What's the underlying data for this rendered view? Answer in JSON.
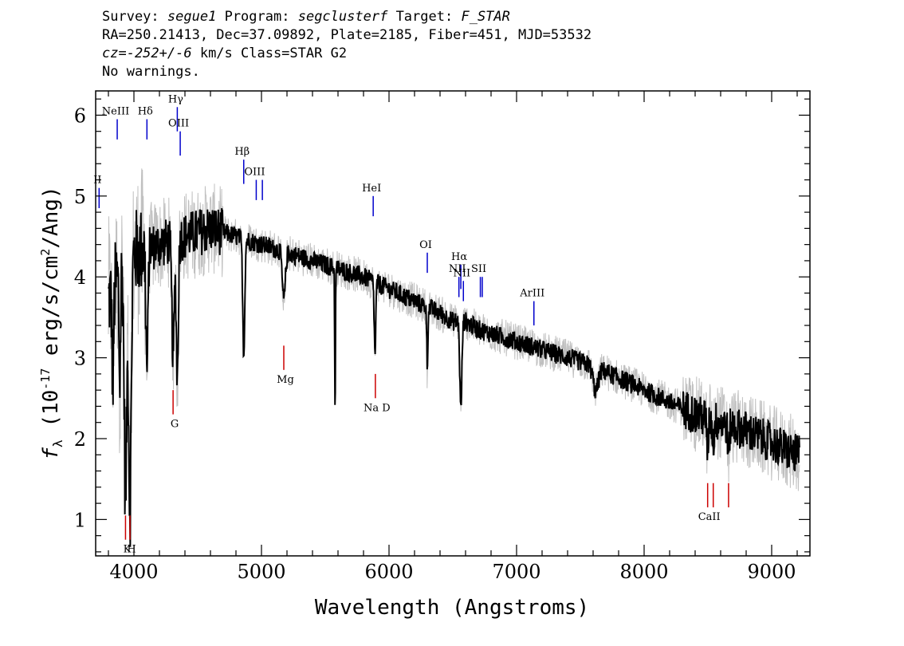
{
  "header": {
    "line1": {
      "survey_label": "Survey:",
      "survey": "segue1",
      "program_label": "Program:",
      "program": "segclusterf",
      "target_label": "Target:",
      "target": "F_STAR"
    },
    "line2": "RA=250.21413, Dec=37.09892, Plate=2185, Fiber=451, MJD=53532",
    "line3": {
      "cz": "cz=-252+/-6",
      "rest": " km/s Class=STAR G2"
    },
    "line4": "No warnings."
  },
  "chart_data": {
    "type": "line",
    "xlabel": "Wavelength (Angstroms)",
    "ylabel_parts": [
      "f",
      "λ",
      " (10",
      "-17",
      " erg/s/cm",
      "2",
      "/Ang)"
    ],
    "xlim": [
      3700,
      9300
    ],
    "ylim": [
      0.55,
      6.3
    ],
    "xticks": [
      4000,
      5000,
      6000,
      7000,
      8000,
      9000
    ],
    "yticks": [
      1,
      2,
      3,
      4,
      5,
      6
    ],
    "grid": false,
    "colors": {
      "flux": "#000000",
      "error": "#c0c0c0",
      "emission": "#0000cc",
      "absorption": "#cc0000"
    },
    "flux_continuum": [
      [
        3800,
        3.7
      ],
      [
        3900,
        4.1
      ],
      [
        4000,
        4.3
      ],
      [
        4100,
        4.35
      ],
      [
        4200,
        4.4
      ],
      [
        4300,
        4.45
      ],
      [
        4400,
        4.5
      ],
      [
        4500,
        4.55
      ],
      [
        4600,
        4.6
      ],
      [
        4700,
        4.55
      ],
      [
        4800,
        4.5
      ],
      [
        4900,
        4.45
      ],
      [
        5000,
        4.4
      ],
      [
        5100,
        4.35
      ],
      [
        5200,
        4.3
      ],
      [
        5400,
        4.2
      ],
      [
        5600,
        4.1
      ],
      [
        5800,
        4.0
      ],
      [
        6000,
        3.85
      ],
      [
        6200,
        3.7
      ],
      [
        6400,
        3.55
      ],
      [
        6500,
        3.45
      ],
      [
        6600,
        3.45
      ],
      [
        6700,
        3.35
      ],
      [
        7000,
        3.2
      ],
      [
        7200,
        3.1
      ],
      [
        7400,
        3.0
      ],
      [
        7600,
        2.9
      ],
      [
        7800,
        2.75
      ],
      [
        8000,
        2.6
      ],
      [
        8200,
        2.45
      ],
      [
        8400,
        2.3
      ],
      [
        8600,
        2.2
      ],
      [
        8800,
        2.1
      ],
      [
        9000,
        1.95
      ],
      [
        9200,
        1.8
      ]
    ],
    "flux_absorption_features": [
      {
        "x": 3934,
        "depth": 2.9,
        "width": 10
      },
      {
        "x": 3969,
        "depth": 3.1,
        "width": 10
      },
      {
        "x": 3835,
        "depth": 1.2,
        "width": 6
      },
      {
        "x": 3889,
        "depth": 1.3,
        "width": 6
      },
      {
        "x": 4102,
        "depth": 1.5,
        "width": 8
      },
      {
        "x": 4307,
        "depth": 1.4,
        "width": 10
      },
      {
        "x": 4340,
        "depth": 1.7,
        "width": 8
      },
      {
        "x": 4861,
        "depth": 1.4,
        "width": 8
      },
      {
        "x": 5175,
        "depth": 0.6,
        "width": 12
      },
      {
        "x": 5577,
        "depth": 1.8,
        "width": 3
      },
      {
        "x": 5890,
        "depth": 0.9,
        "width": 6
      },
      {
        "x": 6300,
        "depth": 0.8,
        "width": 4
      },
      {
        "x": 6563,
        "depth": 1.1,
        "width": 8
      },
      {
        "x": 7620,
        "depth": 0.3,
        "width": 20
      },
      {
        "x": 8498,
        "depth": 0.4,
        "width": 6
      },
      {
        "x": 8542,
        "depth": 0.3,
        "width": 6
      },
      {
        "x": 8662,
        "depth": 0.4,
        "width": 6
      }
    ],
    "emission_lines": [
      {
        "label": "NeIII",
        "x": 3869,
        "y_top": 5.95,
        "y_bottom": 5.7
      },
      {
        "label": "Hδ",
        "x": 4102,
        "y_top": 5.95,
        "y_bottom": 5.7
      },
      {
        "label": "Hγ",
        "x": 4340,
        "y_top": 6.1,
        "y_bottom": 5.8
      },
      {
        "label": "OIII",
        "x": 4363,
        "y_top": 5.8,
        "y_bottom": 5.5
      },
      {
        "label": "Hβ",
        "x": 4861,
        "y_top": 5.45,
        "y_bottom": 5.15
      },
      {
        "label": "OIII",
        "x": 4959,
        "y_top": 5.2,
        "y_bottom": 4.95
      },
      {
        "label": "",
        "x": 5007,
        "y_top": 5.2,
        "y_bottom": 4.95
      },
      {
        "label": "II",
        "x": 3727,
        "y_top": 5.1,
        "y_bottom": 4.85
      },
      {
        "label": "HeI",
        "x": 5876,
        "y_top": 5.0,
        "y_bottom": 4.75
      },
      {
        "label": "OI",
        "x": 6300,
        "y_top": 4.3,
        "y_bottom": 4.05
      },
      {
        "label": "NII",
        "x": 6548,
        "y_top": 4.0,
        "y_bottom": 3.75
      },
      {
        "label": "Hα",
        "x": 6563,
        "y_top": 4.15,
        "y_bottom": 3.85
      },
      {
        "label": "NII",
        "x": 6583,
        "y_top": 3.95,
        "y_bottom": 3.7
      },
      {
        "label": "SII",
        "x": 6716,
        "y_top": 4.0,
        "y_bottom": 3.75
      },
      {
        "label": "",
        "x": 6731,
        "y_top": 4.0,
        "y_bottom": 3.75
      },
      {
        "label": "ArIII",
        "x": 7136,
        "y_top": 3.7,
        "y_bottom": 3.4
      }
    ],
    "absorption_lines": [
      {
        "label": "K",
        "x": 3934,
        "y_top": 1.05,
        "y_bottom": 0.75
      },
      {
        "label": "H",
        "x": 3969,
        "y_top": 1.05,
        "y_bottom": 0.75
      },
      {
        "label": "G",
        "x": 4307,
        "y_top": 2.6,
        "y_bottom": 2.3
      },
      {
        "label": "Mg",
        "x": 5175,
        "y_top": 3.15,
        "y_bottom": 2.85
      },
      {
        "label": "Na D",
        "x": 5893,
        "y_top": 2.8,
        "y_bottom": 2.5
      },
      {
        "label": "CaII",
        "x": 8498,
        "y_top": 1.45,
        "y_bottom": 1.15
      },
      {
        "label": "",
        "x": 8542,
        "y_top": 1.45,
        "y_bottom": 1.15
      },
      {
        "label": "",
        "x": 8662,
        "y_top": 1.45,
        "y_bottom": 1.15
      }
    ]
  }
}
